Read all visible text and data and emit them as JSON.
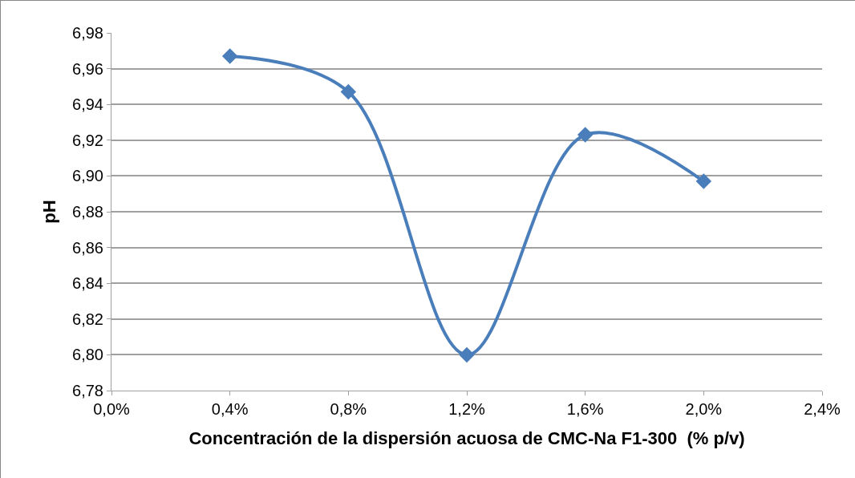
{
  "chart_data": {
    "type": "line",
    "xlabel": "Concentración de la dispersión acuosa de CMC-Na F1-300  (% p/v)",
    "ylabel": "pH",
    "x": [
      0.4,
      0.8,
      1.2,
      1.6,
      2.0
    ],
    "series": [
      {
        "color": "#4a7ebb",
        "values": [
          6.967,
          6.947,
          6.8,
          6.923,
          6.897
        ]
      }
    ],
    "xlim": [
      0,
      2.4
    ],
    "xticks": [
      {
        "value": 0,
        "label": "0,0%"
      },
      {
        "value": 0.4,
        "label": "0,4%"
      },
      {
        "value": 0.8,
        "label": "0,8%"
      },
      {
        "value": 1.2,
        "label": "1,2%"
      },
      {
        "value": 1.6,
        "label": "1,6%"
      },
      {
        "value": 2.0,
        "label": "2,0%"
      },
      {
        "value": 2.4,
        "label": "2,4%"
      }
    ],
    "ylim": [
      6.78,
      6.98
    ],
    "yticks": [
      {
        "value": 6.78,
        "label": "6,78"
      },
      {
        "value": 6.8,
        "label": "6,80"
      },
      {
        "value": 6.82,
        "label": "6,82"
      },
      {
        "value": 6.84,
        "label": "6,84"
      },
      {
        "value": 6.86,
        "label": "6,86"
      },
      {
        "value": 6.88,
        "label": "6,88"
      },
      {
        "value": 6.9,
        "label": "6,90"
      },
      {
        "value": 6.92,
        "label": "6,92"
      },
      {
        "value": 6.94,
        "label": "6,94"
      },
      {
        "value": 6.96,
        "label": "6,96"
      },
      {
        "value": 6.98,
        "label": "6,98"
      }
    ],
    "grid": "y",
    "legend": false,
    "marker": "diamond",
    "line_style": "solid"
  }
}
